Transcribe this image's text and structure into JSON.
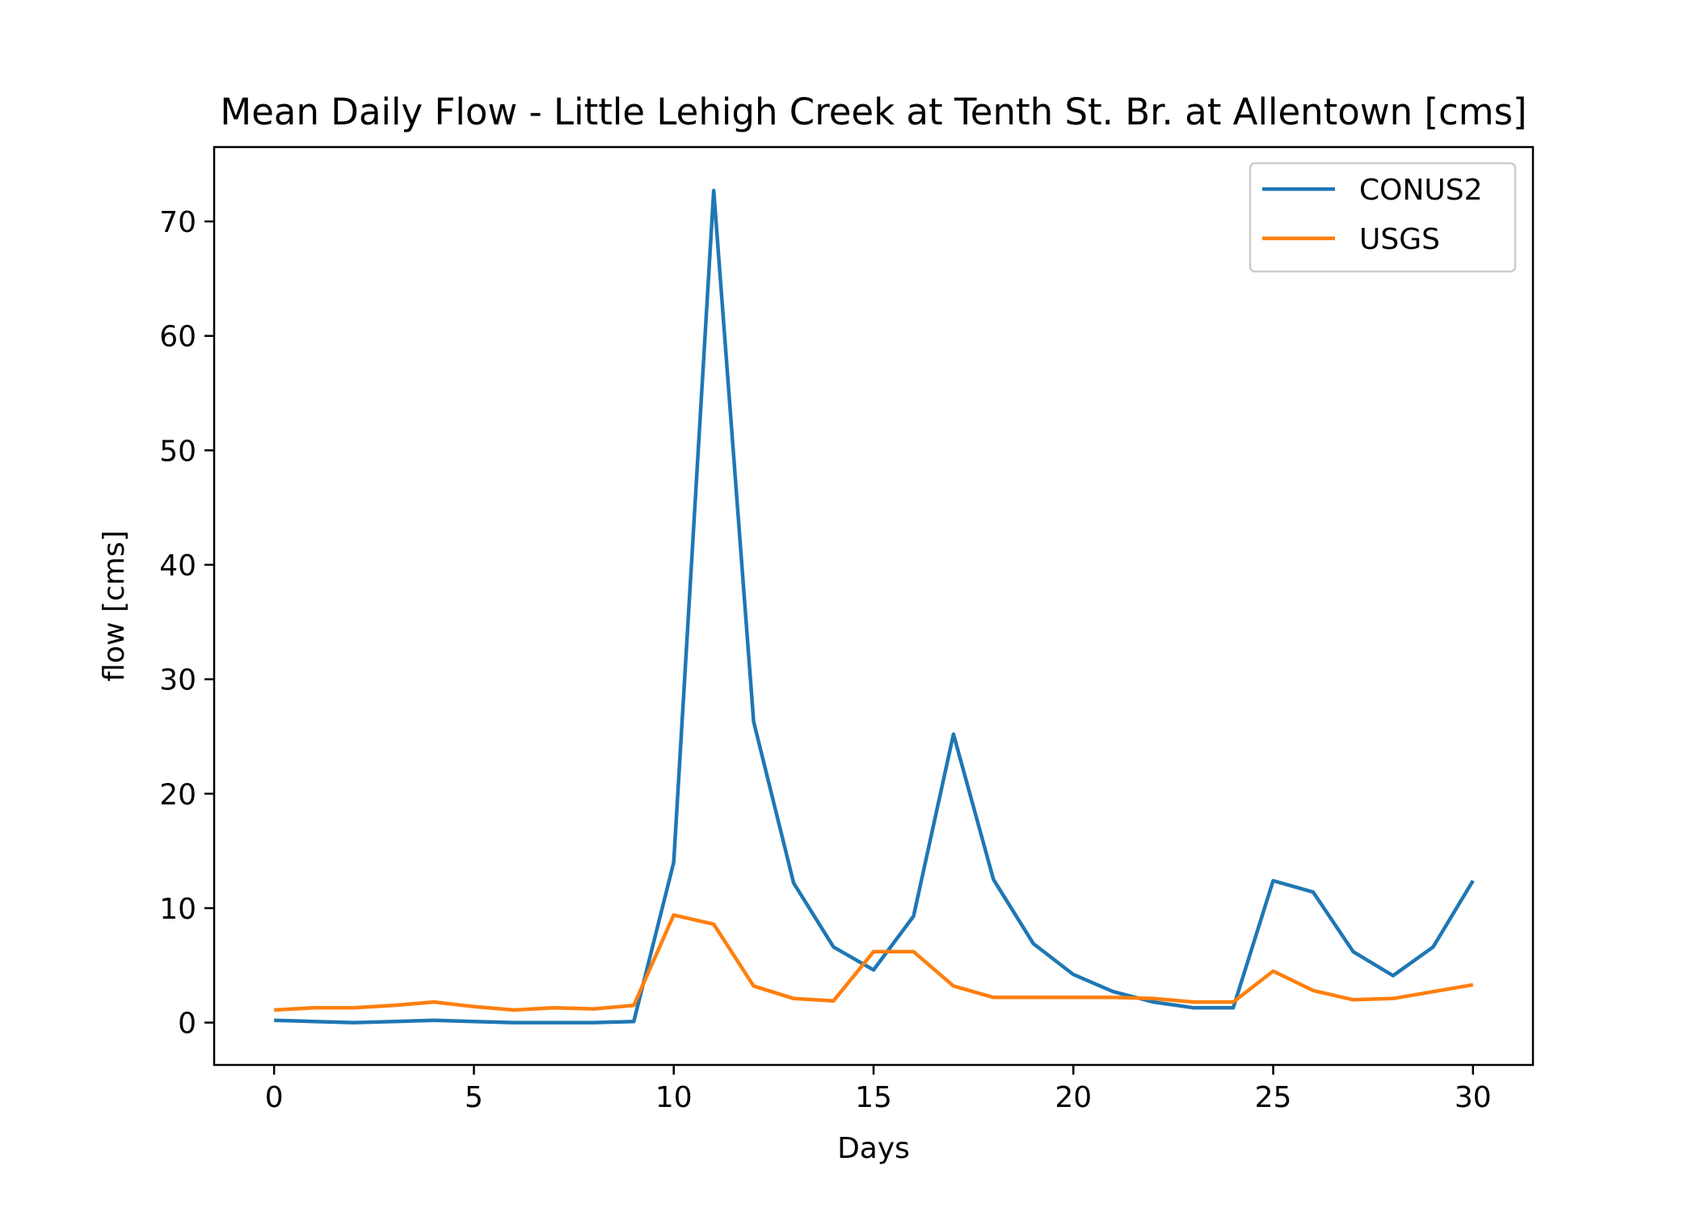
{
  "chart_data": {
    "type": "line",
    "title": "Mean Daily Flow - Little Lehigh Creek at Tenth St. Br. at Allentown [cms]",
    "xlabel": "Days",
    "ylabel": "flow [cms]",
    "xlim": [
      -1.5,
      31.5
    ],
    "ylim": [
      -3.7,
      76.5
    ],
    "xticks": [
      0,
      5,
      10,
      15,
      20,
      25,
      30
    ],
    "yticks": [
      0,
      10,
      20,
      30,
      40,
      50,
      60,
      70
    ],
    "grid": false,
    "legend_position": "top-right",
    "x": [
      0,
      1,
      2,
      3,
      4,
      5,
      6,
      7,
      8,
      9,
      10,
      11,
      12,
      13,
      14,
      15,
      16,
      17,
      18,
      19,
      20,
      21,
      22,
      23,
      24,
      25,
      26,
      27,
      28,
      29,
      30
    ],
    "series": [
      {
        "name": "CONUS2",
        "color": "#1f77b4",
        "values": [
          0.2,
          0.1,
          0.0,
          0.1,
          0.2,
          0.1,
          0.0,
          0.0,
          0.0,
          0.1,
          14.0,
          72.7,
          26.3,
          12.2,
          6.6,
          4.6,
          9.3,
          25.2,
          12.5,
          6.9,
          4.2,
          2.7,
          1.8,
          1.3,
          1.3,
          12.4,
          11.4,
          6.2,
          4.1,
          6.6,
          12.4
        ]
      },
      {
        "name": "USGS",
        "color": "#ff7f0e",
        "values": [
          1.1,
          1.3,
          1.3,
          1.5,
          1.8,
          1.4,
          1.1,
          1.3,
          1.2,
          1.5,
          9.4,
          8.6,
          3.2,
          2.1,
          1.9,
          6.2,
          6.2,
          3.2,
          2.2,
          2.2,
          2.2,
          2.2,
          2.1,
          1.8,
          1.8,
          4.5,
          2.8,
          2.0,
          2.1,
          2.7,
          3.3
        ]
      }
    ]
  }
}
